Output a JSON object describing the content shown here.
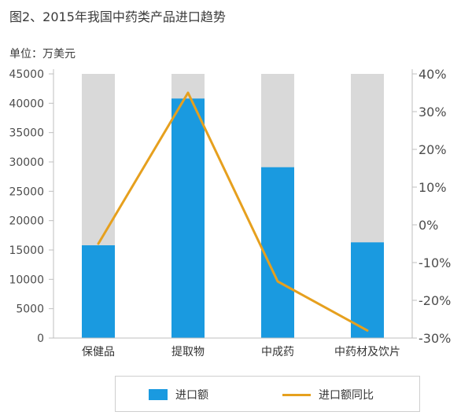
{
  "header": {
    "title": "图2、2015年我国中药类产品进口趋势",
    "unit": "单位：万美元"
  },
  "legend": {
    "bar_label": "进口额",
    "line_label": "进口额同比"
  },
  "colors": {
    "bar": "#1a9ae0",
    "bar_background": "#d9d9d9",
    "line": "#e6a01e",
    "axis": "#bfbfbf"
  },
  "chart_data": {
    "type": "bar",
    "title": "图2、2015年我国中药类产品进口趋势",
    "categories": [
      "保健品",
      "提取物",
      "中成药",
      "中药材及饮片"
    ],
    "series": [
      {
        "name": "进口额",
        "type": "bar",
        "axis": "left",
        "values": [
          15800,
          40800,
          29100,
          16300
        ]
      },
      {
        "name": "进口额同比",
        "type": "line",
        "axis": "right",
        "values": [
          -5,
          35,
          -15,
          -28
        ]
      }
    ],
    "background_bar_value": 45000,
    "y_left": {
      "min": 0,
      "max": 45000,
      "ticks": [
        "0",
        "5000",
        "10000",
        "15000",
        "20000",
        "25000",
        "30000",
        "35000",
        "40000",
        "45000"
      ]
    },
    "y_right": {
      "min": -30,
      "max": 40,
      "ticks": [
        "-30%",
        "-20%",
        "-10%",
        "0%",
        "10%",
        "20%",
        "30%",
        "40%"
      ]
    },
    "grid": false,
    "legend_position": "bottom"
  }
}
